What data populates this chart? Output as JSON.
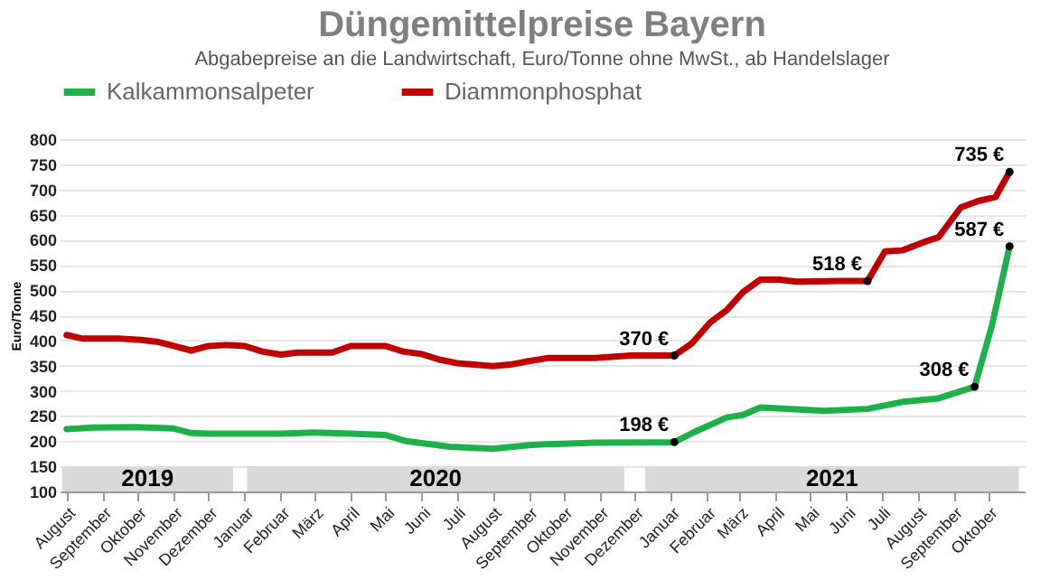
{
  "chart_data": {
    "type": "line",
    "title": "Düngemittelpreise Bayern",
    "subtitle": "Abgabepreise an die Landwirtschaft, Euro/Tonne ohne MwSt., ab Handelslager",
    "ylabel": "Euro/Tonne",
    "xlim": [
      "2019-07-26",
      "2021-11-01"
    ],
    "ylim": [
      100,
      800
    ],
    "xticks": [
      {
        "value": "2019-08",
        "label": "August"
      },
      {
        "value": "2019-09",
        "label": "September"
      },
      {
        "value": "2019-10",
        "label": "Oktober"
      },
      {
        "value": "2019-11",
        "label": "November"
      },
      {
        "value": "2019-12",
        "label": "Dezember"
      },
      {
        "value": "2020-01",
        "label": "Januar"
      },
      {
        "value": "2020-02",
        "label": "Februar"
      },
      {
        "value": "2020-03",
        "label": "März"
      },
      {
        "value": "2020-04",
        "label": "April"
      },
      {
        "value": "2020-05",
        "label": "Mai"
      },
      {
        "value": "2020-06",
        "label": "Juni"
      },
      {
        "value": "2020-07",
        "label": "Juli"
      },
      {
        "value": "2020-08",
        "label": "August"
      },
      {
        "value": "2020-09",
        "label": "September"
      },
      {
        "value": "2020-10",
        "label": "Oktober"
      },
      {
        "value": "2020-11",
        "label": "November"
      },
      {
        "value": "2020-12",
        "label": "Dezember"
      },
      {
        "value": "2021-01",
        "label": "Januar"
      },
      {
        "value": "2021-02",
        "label": "Februar"
      },
      {
        "value": "2021-03",
        "label": "März"
      },
      {
        "value": "2021-04",
        "label": "April"
      },
      {
        "value": "2021-05",
        "label": "Mai"
      },
      {
        "value": "2021-06",
        "label": "Juni"
      },
      {
        "value": "2021-07",
        "label": "Juli"
      },
      {
        "value": "2021-08",
        "label": "August"
      },
      {
        "value": "2021-09",
        "label": "September"
      },
      {
        "value": "2021-10",
        "label": "Oktober"
      }
    ],
    "yticks": [
      100,
      150,
      200,
      250,
      300,
      350,
      400,
      450,
      500,
      550,
      600,
      650,
      700,
      750,
      800
    ],
    "grid": "y",
    "legend": "top",
    "marker": "none",
    "line_style": "solid",
    "series": [
      {
        "name": "Kalkammonsalpeter",
        "color": "#1db04b",
        "x": [
          "2019-08-01",
          "2019-08-25",
          "2019-09-28",
          "2019-11-01",
          "2019-11-16",
          "2019-12-01",
          "2020-02-01",
          "2020-03-01",
          "2020-04-01",
          "2020-05-01",
          "2020-05-19",
          "2020-06-25",
          "2020-08-01",
          "2020-09-01",
          "2020-09-17",
          "2020-10-28",
          "2021-01-04",
          "2021-01-22",
          "2021-02-18",
          "2021-03-04",
          "2021-03-19",
          "2021-05-13",
          "2021-06-19",
          "2021-07-19",
          "2021-08-19",
          "2021-09-19",
          "2021-10-04",
          "2021-10-19"
        ],
        "values": [
          224,
          227,
          228,
          225,
          216,
          215,
          215,
          217,
          215,
          212,
          200,
          189,
          185,
          192,
          194,
          197,
          198,
          219,
          247,
          252,
          267,
          260,
          264,
          278,
          285,
          308,
          431,
          587
        ]
      },
      {
        "name": "Diammonphosphat",
        "color": "#c00000",
        "x": [
          "2019-08-01",
          "2019-08-14",
          "2019-09-14",
          "2019-10-04",
          "2019-10-19",
          "2019-11-01",
          "2019-11-16",
          "2019-12-01",
          "2019-12-16",
          "2020-01-01",
          "2020-01-16",
          "2020-02-01",
          "2020-02-15",
          "2020-03-16",
          "2020-04-01",
          "2020-05-01",
          "2020-05-16",
          "2020-06-01",
          "2020-06-16",
          "2020-07-01",
          "2020-07-16",
          "2020-08-01",
          "2020-08-16",
          "2020-09-01",
          "2020-09-17",
          "2020-10-28",
          "2020-11-28",
          "2021-01-04",
          "2021-01-19",
          "2021-02-04",
          "2021-02-18",
          "2021-03-04",
          "2021-03-19",
          "2021-04-04",
          "2021-04-19",
          "2021-05-25",
          "2021-06-19",
          "2021-07-04",
          "2021-07-19",
          "2021-08-07",
          "2021-08-19",
          "2021-09-07",
          "2021-09-22",
          "2021-10-07",
          "2021-10-19"
        ],
        "values": [
          411,
          404,
          404,
          401,
          397,
          389,
          380,
          389,
          391,
          389,
          378,
          372,
          376,
          376,
          389,
          389,
          378,
          373,
          362,
          355,
          352,
          349,
          352,
          359,
          365,
          365,
          370,
          370,
          394,
          436,
          460,
          496,
          521,
          521,
          517,
          518,
          518,
          577,
          579,
          596,
          605,
          664,
          677,
          685,
          735
        ]
      }
    ],
    "bands": [
      {
        "axis": "x",
        "from": "2019-07-28",
        "to": "2019-12-22",
        "label": "2019",
        "color": "#d9d9d9"
      },
      {
        "axis": "x",
        "from": "2020-01-03",
        "to": "2020-11-22",
        "label": "2020",
        "color": "#d9d9d9"
      },
      {
        "axis": "x",
        "from": "2020-12-10",
        "to": "2021-10-27",
        "label": "2021",
        "color": "#d9d9d9"
      }
    ],
    "annotations": [
      {
        "text": "370 €",
        "x": "2021-01-04",
        "y": 370
      },
      {
        "text": "518 €",
        "x": "2021-06-19",
        "y": 518
      },
      {
        "text": "735 €",
        "x": "2021-10-19",
        "y": 735
      },
      {
        "text": "198 €",
        "x": "2021-01-04",
        "y": 198
      },
      {
        "text": "308 €",
        "x": "2021-09-19",
        "y": 308
      },
      {
        "text": "587 €",
        "x": "2021-10-19",
        "y": 587
      }
    ]
  }
}
